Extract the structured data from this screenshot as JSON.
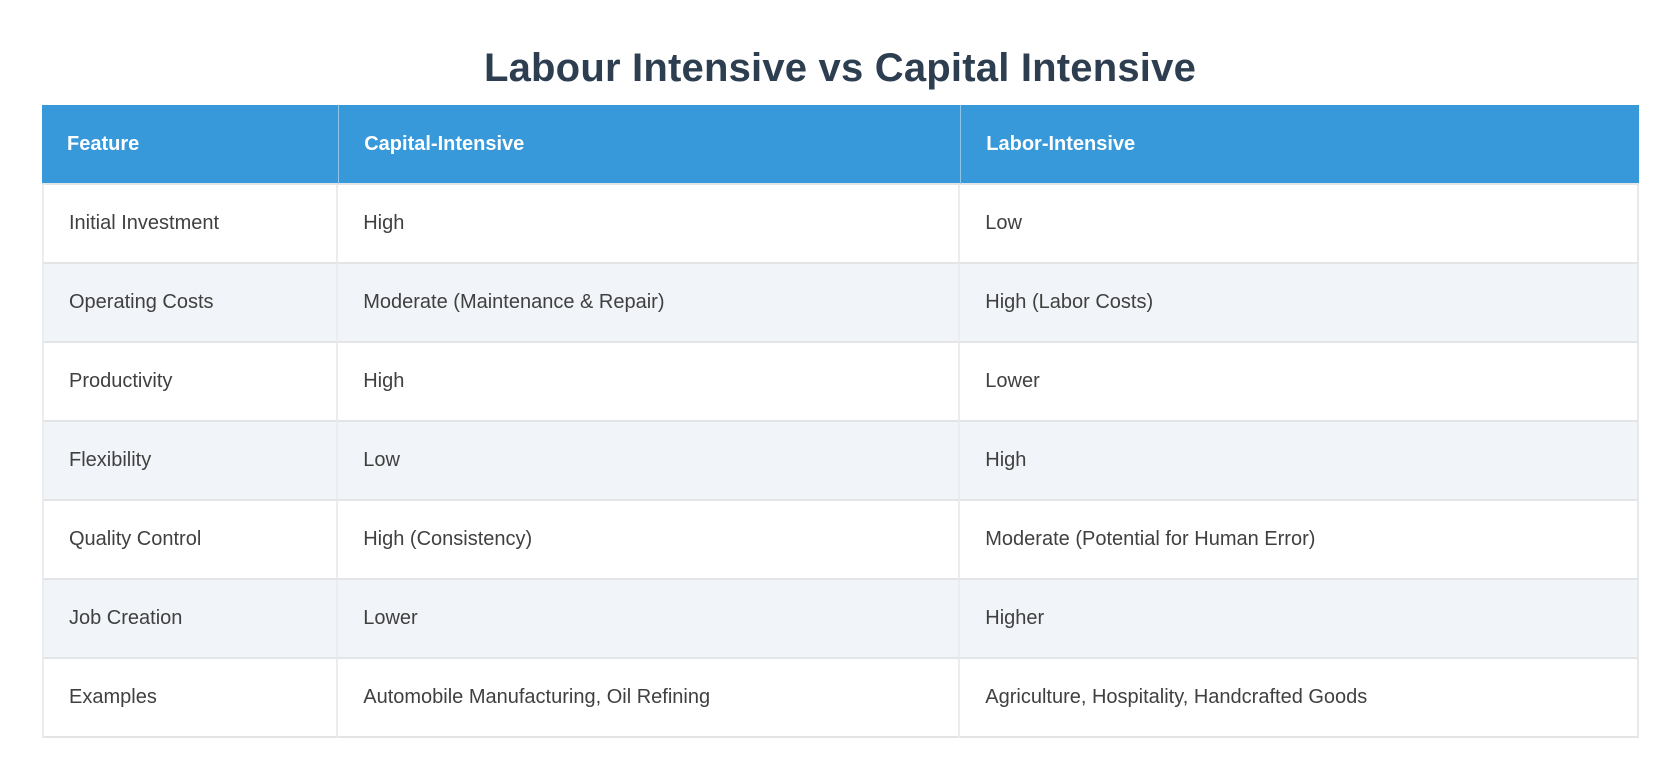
{
  "page_title": "Labour Intensive vs Capital Intensive",
  "chart_data": {
    "type": "table",
    "title": "Labour Intensive vs Capital Intensive",
    "columns": [
      "Feature",
      "Capital-Intensive",
      "Labor-Intensive"
    ],
    "rows": [
      [
        "Initial Investment",
        "High",
        "Low"
      ],
      [
        "Operating Costs",
        "Moderate (Maintenance & Repair)",
        "High (Labor Costs)"
      ],
      [
        "Productivity",
        "High",
        "Lower"
      ],
      [
        "Flexibility",
        "Low",
        "High"
      ],
      [
        "Quality Control",
        "High (Consistency)",
        "Moderate (Potential for Human Error)"
      ],
      [
        "Job Creation",
        "Lower",
        "Higher"
      ],
      [
        "Examples",
        "Automobile Manufacturing, Oil Refining",
        "Agriculture, Hospitality, Handcrafted Goods"
      ]
    ],
    "legend_position": "none",
    "grid": true
  },
  "colors": {
    "header_bg": "#3798da",
    "header_text": "#ffffff",
    "row_bg": "#ffffff",
    "stripe_row_bg": "#f1f4f8",
    "border": "#e2e4e6",
    "title_text": "#2d3e50",
    "body_text": "#404040"
  }
}
